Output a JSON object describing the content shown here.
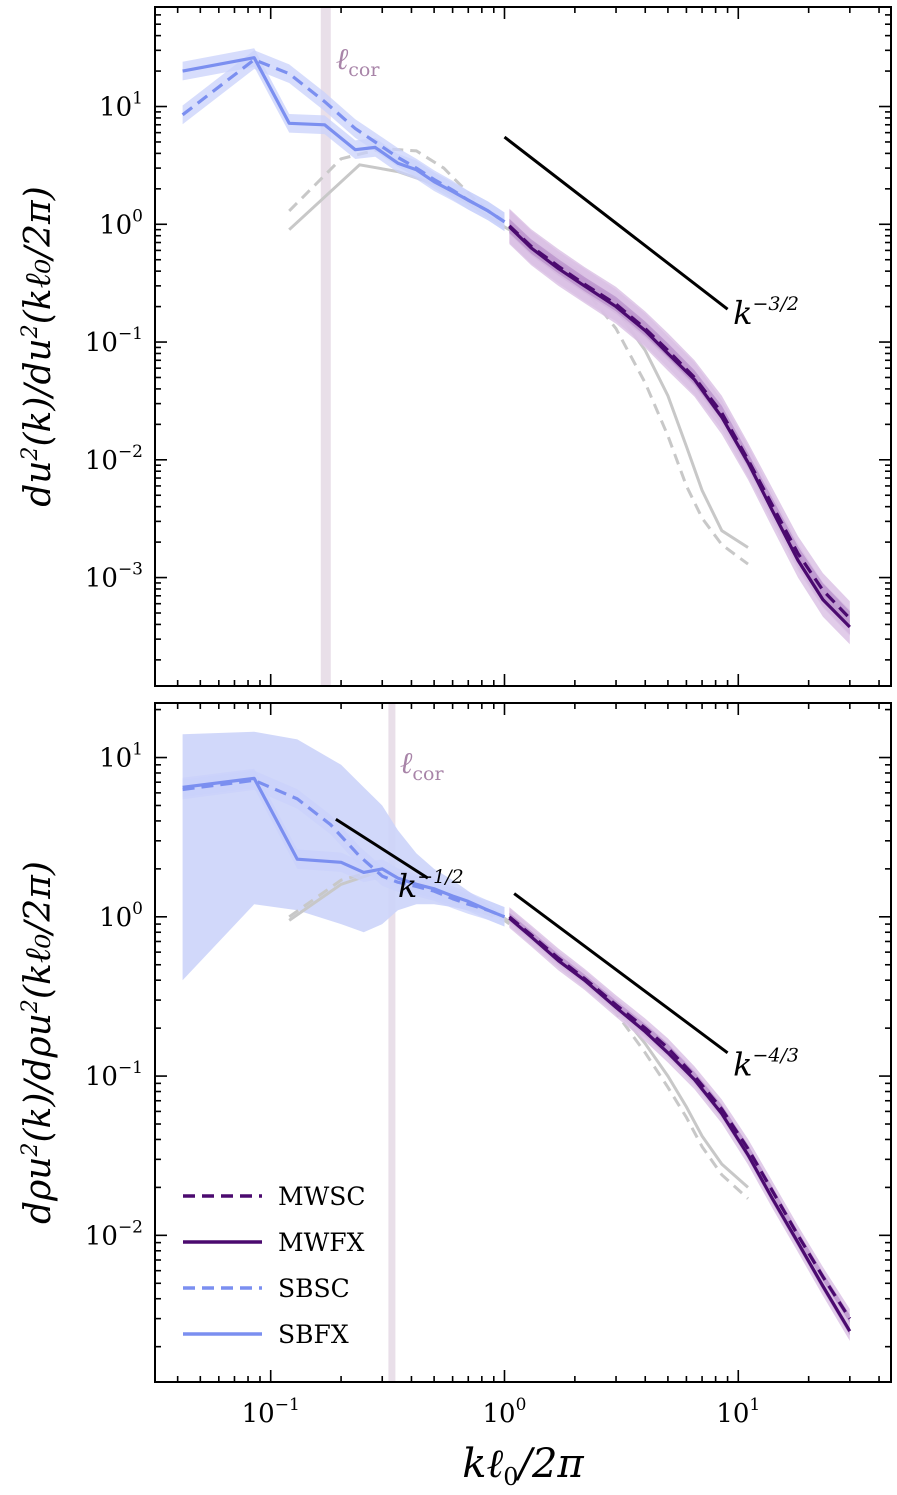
{
  "chart_data": [
    {
      "type": "line",
      "panel": "top",
      "xscale": "log",
      "yscale": "log",
      "xlim": [
        0.032,
        45
      ],
      "ylim": [
        0.00012,
        70
      ],
      "ylabel": "du²(k)/du²(kℓ₀/2π)",
      "ylabel_parts": {
        "main": "du",
        "sup": "2",
        "mid": "(k)/du",
        "tail": "(kℓ₀/2π)"
      },
      "ytick_labels": [
        {
          "value": 10,
          "base": "10",
          "exp": "1"
        },
        {
          "value": 1,
          "base": "10",
          "exp": "0"
        },
        {
          "value": 0.1,
          "base": "10",
          "exp": "−1"
        },
        {
          "value": 0.01,
          "base": "10",
          "exp": "−2"
        },
        {
          "value": 0.001,
          "base": "10",
          "exp": "−3"
        }
      ],
      "lcor": {
        "x": 0.172,
        "label_main": "ℓ",
        "label_sub": "cor"
      },
      "reference_lines": [
        {
          "x": [
            1.0,
            9.0
          ],
          "y": [
            5.5,
            0.19
          ],
          "label_base": "k",
          "label_exp": "−3/2",
          "label_x": 9.5,
          "label_y": 0.16
        }
      ],
      "series": [
        {
          "name": "SBFX",
          "color": "#7b8ff0",
          "dash": "solid",
          "x": [
            0.042,
            0.085,
            0.12,
            0.17,
            0.23,
            0.28,
            0.35,
            0.42,
            0.5,
            0.6,
            0.7,
            0.85,
            1.0
          ],
          "y": [
            20,
            26,
            7.2,
            7.0,
            4.3,
            4.5,
            3.3,
            2.9,
            2.3,
            1.9,
            1.6,
            1.3,
            1.05
          ],
          "band_frac": 0.2
        },
        {
          "name": "SBSC",
          "color": "#7b8ff0",
          "dash": "dashed",
          "x": [
            0.042,
            0.085,
            0.12,
            0.17,
            0.23,
            0.28,
            0.35,
            0.42,
            0.5,
            0.6,
            0.7,
            0.85,
            1.0
          ],
          "y": [
            8.5,
            25,
            19,
            11,
            6.5,
            5.0,
            3.7,
            3.0,
            2.4,
            1.95,
            1.6,
            1.3,
            1.05
          ],
          "band_frac": 0.2
        },
        {
          "name": "MWFX",
          "color": "#4b0a6f",
          "dash": "solid",
          "x": [
            1.05,
            1.3,
            1.7,
            2.2,
            3,
            4,
            5,
            6.5,
            8.5,
            11,
            14,
            18,
            23,
            30
          ],
          "y": [
            0.95,
            0.63,
            0.42,
            0.3,
            0.2,
            0.125,
            0.08,
            0.048,
            0.023,
            0.0095,
            0.0037,
            0.0014,
            0.00065,
            0.00038
          ],
          "band_inner": 0.15,
          "band_outer": 0.4
        },
        {
          "name": "MWSC",
          "color": "#4b0a6f",
          "dash": "dashed",
          "x": [
            1.05,
            1.3,
            1.7,
            2.2,
            3,
            4,
            5,
            6.5,
            8.5,
            11,
            14,
            18,
            23,
            30
          ],
          "y": [
            0.97,
            0.65,
            0.44,
            0.31,
            0.21,
            0.13,
            0.085,
            0.05,
            0.025,
            0.01,
            0.0041,
            0.0016,
            0.00078,
            0.00045
          ],
          "band_inner": 0.15,
          "band_outer": 0.4
        },
        {
          "name": "Gray solid",
          "color": "#c8c8c8",
          "dash": "solid",
          "x": [
            0.12,
            0.24,
            0.35,
            0.5,
            0.7,
            1.0,
            1.5,
            2.0,
            3,
            4,
            5,
            6,
            7,
            8.5,
            11
          ],
          "y": [
            0.9,
            3.2,
            2.8,
            2.2,
            1.5,
            0.95,
            0.6,
            0.42,
            0.19,
            0.085,
            0.035,
            0.013,
            0.0055,
            0.0025,
            0.0018
          ]
        },
        {
          "name": "Gray dashed",
          "color": "#c8c8c8",
          "dash": "dashed",
          "x": [
            0.12,
            0.2,
            0.3,
            0.42,
            0.55,
            0.75,
            1.0,
            1.5,
            2.0,
            3,
            4,
            5,
            6,
            7,
            8.5,
            11
          ],
          "y": [
            1.3,
            3.6,
            4.4,
            4.2,
            3.0,
            1.6,
            1.0,
            0.55,
            0.36,
            0.13,
            0.045,
            0.016,
            0.006,
            0.0032,
            0.0019,
            0.0013
          ]
        }
      ]
    },
    {
      "type": "line",
      "panel": "bottom",
      "xscale": "log",
      "yscale": "log",
      "xlim": [
        0.032,
        45
      ],
      "ylim": [
        0.0012,
        22
      ],
      "xlabel": "kℓ₀/2π",
      "xlabel_parts": {
        "pre": "kℓ",
        "sub": "0",
        "post": "/2π"
      },
      "xtick_labels": [
        {
          "value": 0.1,
          "base": "10",
          "exp": "−1"
        },
        {
          "value": 1,
          "base": "10",
          "exp": "0"
        },
        {
          "value": 10,
          "base": "10",
          "exp": "1"
        }
      ],
      "ylabel": "dρu²(k)/dρu²(kℓ₀/2π)",
      "ylabel_parts": {
        "main": "dρu",
        "sup": "2",
        "mid": "(k)/dρu",
        "tail": "(kℓ₀/2π)"
      },
      "ytick_labels": [
        {
          "value": 10,
          "base": "10",
          "exp": "1"
        },
        {
          "value": 1,
          "base": "10",
          "exp": "0"
        },
        {
          "value": 0.1,
          "base": "10",
          "exp": "−1"
        },
        {
          "value": 0.01,
          "base": "10",
          "exp": "−2"
        }
      ],
      "lcor": {
        "x": 0.33,
        "label_main": "ℓ",
        "label_sub": "cor"
      },
      "reference_lines": [
        {
          "x": [
            0.19,
            0.47
          ],
          "y": [
            4.1,
            1.75
          ],
          "label_base": "k",
          "label_exp": "−1/2",
          "label_x": 0.47,
          "label_y": 1.45
        },
        {
          "x": [
            1.1,
            9.0
          ],
          "y": [
            1.4,
            0.14
          ],
          "label_base": "k",
          "label_exp": "−4/3",
          "label_x": 9.5,
          "label_y": 0.11
        }
      ],
      "series": [
        {
          "name": "SBFX",
          "color": "#7b8ff0",
          "dash": "solid",
          "x": [
            0.042,
            0.085,
            0.13,
            0.2,
            0.25,
            0.3,
            0.35,
            0.42,
            0.5,
            0.6,
            0.7,
            0.85,
            1.0
          ],
          "y": [
            6.5,
            7.4,
            2.3,
            2.2,
            1.9,
            2.0,
            1.75,
            1.6,
            1.5,
            1.35,
            1.25,
            1.1,
            1.0
          ],
          "band_frac": 0.15,
          "wide_band_upper": [
            14,
            14.5,
            13,
            9,
            6.5,
            5,
            3.5,
            2.5,
            2.0,
            1.7,
            1.45,
            1.2,
            1.02
          ],
          "wide_band_lower": [
            0.4,
            1.2,
            1.1,
            0.9,
            0.8,
            0.9,
            1.1,
            1.2,
            1.2,
            1.15,
            1.1,
            1.02,
            0.98
          ]
        },
        {
          "name": "SBSC",
          "color": "#7b8ff0",
          "dash": "dashed",
          "x": [
            0.042,
            0.085,
            0.13,
            0.18,
            0.24,
            0.3,
            0.35,
            0.42,
            0.5,
            0.6,
            0.7,
            0.85,
            1.0
          ],
          "y": [
            6.3,
            7.2,
            5.5,
            3.8,
            2.4,
            1.8,
            1.65,
            1.55,
            1.45,
            1.3,
            1.2,
            1.1,
            1.0
          ],
          "band_frac": 0.15
        },
        {
          "name": "MWFX",
          "color": "#4b0a6f",
          "dash": "solid",
          "x": [
            1.05,
            1.3,
            1.7,
            2.2,
            3,
            4,
            5,
            6.5,
            8.5,
            11,
            14,
            18,
            23,
            30
          ],
          "y": [
            0.98,
            0.75,
            0.53,
            0.4,
            0.27,
            0.19,
            0.14,
            0.095,
            0.058,
            0.032,
            0.017,
            0.009,
            0.0048,
            0.0025
          ],
          "band_inner": 0.06,
          "band_outer": 0.15
        },
        {
          "name": "MWSC",
          "color": "#4b0a6f",
          "dash": "dashed",
          "x": [
            1.05,
            1.3,
            1.7,
            2.2,
            3,
            4,
            5,
            6.5,
            8.5,
            11,
            14,
            18,
            23,
            30
          ],
          "y": [
            1.0,
            0.77,
            0.55,
            0.41,
            0.28,
            0.2,
            0.15,
            0.1,
            0.062,
            0.035,
            0.019,
            0.01,
            0.0055,
            0.003
          ],
          "band_inner": 0.06,
          "band_outer": 0.15
        },
        {
          "name": "Gray solid",
          "color": "#c8c8c8",
          "dash": "solid",
          "x": [
            0.12,
            0.2,
            0.3,
            0.45,
            0.65,
            1.0,
            1.5,
            2.0,
            3,
            4,
            5,
            6,
            7,
            8.5,
            11
          ],
          "y": [
            0.95,
            1.6,
            1.95,
            1.6,
            1.25,
            0.98,
            0.65,
            0.47,
            0.27,
            0.16,
            0.1,
            0.064,
            0.042,
            0.028,
            0.02
          ]
        },
        {
          "name": "Gray dashed",
          "color": "#c8c8c8",
          "dash": "dashed",
          "x": [
            0.12,
            0.2,
            0.3,
            0.45,
            0.65,
            1.0,
            1.5,
            2.0,
            3,
            4,
            5,
            6,
            7,
            8.5,
            11
          ],
          "y": [
            1.0,
            1.7,
            2.0,
            1.55,
            1.2,
            0.95,
            0.62,
            0.44,
            0.25,
            0.14,
            0.085,
            0.055,
            0.036,
            0.024,
            0.017
          ]
        }
      ]
    }
  ],
  "legend": {
    "location": "lower-left",
    "entries": [
      {
        "label": "MWSC",
        "color": "#4b0a6f",
        "dash": "dashed"
      },
      {
        "label": "MWFX",
        "color": "#4b0a6f",
        "dash": "solid"
      },
      {
        "label": "SBSC",
        "color": "#7b8ff0",
        "dash": "dashed"
      },
      {
        "label": "SBFX",
        "color": "#7b8ff0",
        "dash": "solid"
      }
    ]
  }
}
